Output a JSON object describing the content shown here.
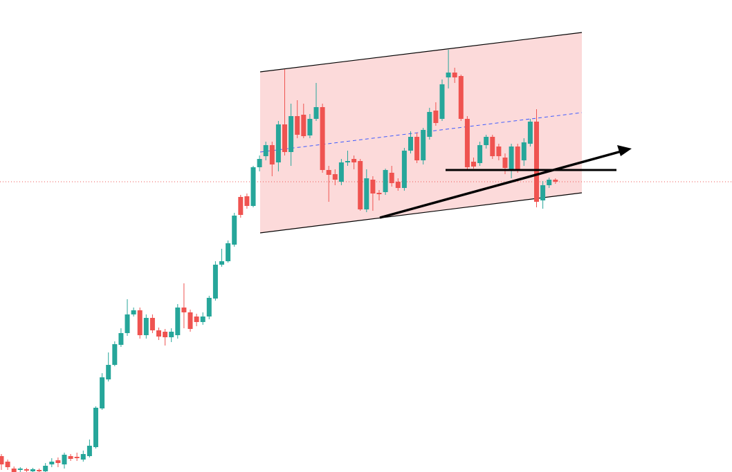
{
  "chart_data": {
    "type": "candlestick",
    "up_color": "#26a69a",
    "down_color": "#ef5350",
    "last_price_color": "#ef5350",
    "ylim": [
      0,
      683
    ],
    "open": [
      23,
      15,
      5,
      3,
      4,
      1,
      3,
      1,
      11,
      17,
      11,
      23,
      22,
      18,
      23,
      36,
      92,
      134,
      155,
      184,
      201,
      228,
      234,
      198,
      223,
      205,
      203,
      195,
      198,
      238,
      231,
      225,
      217,
      225,
      251,
      300,
      305,
      329,
      398,
      399,
      385,
      441,
      457,
      473,
      448,
      503,
      463,
      515,
      517,
      487,
      511,
      528,
      437,
      431,
      420,
      448,
      453,
      450,
      380,
      423,
      404,
      405,
      433,
      420,
      411,
      465,
      485,
      451,
      485,
      523,
      511,
      571,
      578,
      573,
      511,
      449,
      447,
      473,
      485,
      471,
      455,
      437,
      471,
      451,
      475,
      507,
      393,
      415,
      423
    ],
    "high": [
      26,
      18,
      8,
      7,
      6,
      6,
      5,
      13,
      20,
      21,
      28,
      26,
      28,
      31,
      47,
      95,
      143,
      173,
      189,
      208,
      250,
      238,
      238,
      228,
      228,
      209,
      207,
      208,
      243,
      273,
      235,
      229,
      231,
      255,
      305,
      323,
      335,
      375,
      401,
      403,
      443,
      458,
      478,
      478,
      508,
      583,
      533,
      538,
      533,
      518,
      563,
      533,
      443,
      438,
      453,
      465,
      458,
      453,
      438,
      428,
      408,
      439,
      443,
      425,
      469,
      493,
      491,
      498,
      527,
      535,
      568,
      611,
      585,
      575,
      515,
      455,
      478,
      488,
      488,
      475,
      461,
      475,
      475,
      483,
      511,
      525,
      421,
      426,
      425
    ],
    "low": [
      3,
      3,
      0,
      0,
      0,
      0,
      0,
      0,
      7,
      7,
      5,
      16,
      16,
      15,
      21,
      34,
      90,
      131,
      153,
      181,
      197,
      225,
      193,
      193,
      201,
      191,
      183,
      188,
      193,
      208,
      203,
      211,
      213,
      221,
      248,
      297,
      303,
      326,
      368,
      381,
      383,
      435,
      451,
      428,
      435,
      458,
      443,
      483,
      483,
      483,
      508,
      433,
      391,
      415,
      415,
      443,
      438,
      378,
      376,
      378,
      393,
      401,
      413,
      407,
      407,
      461,
      447,
      445,
      481,
      501,
      508,
      555,
      563,
      508,
      438,
      439,
      443,
      468,
      453,
      451,
      431,
      425,
      433,
      443,
      471,
      383,
      381,
      411,
      417
    ],
    "close": [
      11,
      7,
      0,
      5,
      2,
      4,
      1,
      9,
      15,
      13,
      25,
      19,
      20,
      26,
      38,
      93,
      137,
      155,
      185,
      201,
      228,
      234,
      198,
      223,
      205,
      196,
      195,
      203,
      238,
      231,
      207,
      217,
      225,
      252,
      300,
      305,
      331,
      371,
      372,
      385,
      441,
      453,
      473,
      445,
      503,
      463,
      515,
      488,
      486,
      511,
      528,
      437,
      430,
      423,
      448,
      450,
      448,
      380,
      425,
      403,
      402,
      437,
      418,
      411,
      465,
      485,
      451,
      495,
      521,
      505,
      561,
      578,
      571,
      511,
      441,
      442,
      473,
      485,
      457,
      457,
      440,
      471,
      437,
      477,
      507,
      391,
      415,
      423,
      420
    ]
  }
}
